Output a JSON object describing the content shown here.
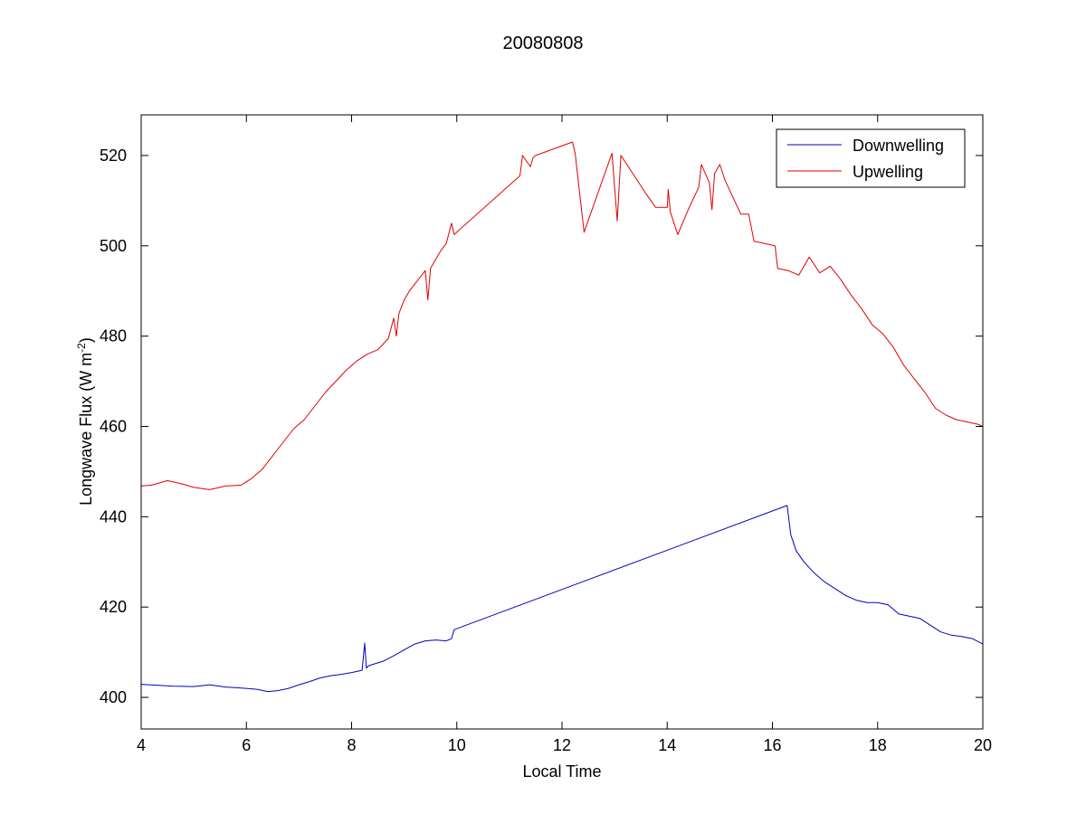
{
  "chart_data": {
    "type": "line",
    "title": "20080808",
    "xlabel": "Local Time",
    "ylabel_main": "Longwave Flux (W m",
    "ylabel_sup": "-2",
    "ylabel_close": ")",
    "xlim": [
      4,
      20
    ],
    "ylim": [
      393,
      529
    ],
    "xticks": [
      4,
      6,
      8,
      10,
      12,
      14,
      16,
      18,
      20
    ],
    "yticks": [
      400,
      420,
      440,
      460,
      480,
      500,
      520
    ],
    "grid": false,
    "legend_position": "top-right",
    "series": [
      {
        "name": "Downwelling",
        "color": "#0000c0",
        "x": [
          4.0,
          4.3,
          4.6,
          5.0,
          5.3,
          5.6,
          6.0,
          6.2,
          6.4,
          6.6,
          6.8,
          7.0,
          7.2,
          7.4,
          7.6,
          7.8,
          8.0,
          8.2,
          8.25,
          8.28,
          8.32,
          8.4,
          8.6,
          8.8,
          9.0,
          9.2,
          9.4,
          9.6,
          9.8,
          9.9,
          9.95,
          16.28,
          16.35,
          16.45,
          16.6,
          16.8,
          17.0,
          17.2,
          17.4,
          17.6,
          17.8,
          18.0,
          18.2,
          18.4,
          18.6,
          18.8,
          19.0,
          19.2,
          19.4,
          19.6,
          19.8,
          20.0
        ],
        "y": [
          402.9,
          402.7,
          402.5,
          402.4,
          402.8,
          402.3,
          402.0,
          401.8,
          401.3,
          401.5,
          402.0,
          402.8,
          403.5,
          404.3,
          404.8,
          405.1,
          405.5,
          406.0,
          412.0,
          406.5,
          407.0,
          407.3,
          408.0,
          409.2,
          410.5,
          411.8,
          412.5,
          412.7,
          412.5,
          413.0,
          415.0,
          442.5,
          436.0,
          432.5,
          430.0,
          427.5,
          425.5,
          424.0,
          422.5,
          421.5,
          421.0,
          421.0,
          420.5,
          418.5,
          418.0,
          417.5,
          416.0,
          414.5,
          413.8,
          413.5,
          413.0,
          411.8
        ]
      },
      {
        "name": "Upwelling",
        "color": "#e00000",
        "x": [
          4.0,
          4.2,
          4.5,
          4.8,
          5.0,
          5.3,
          5.6,
          5.9,
          6.1,
          6.3,
          6.5,
          6.7,
          6.9,
          7.1,
          7.3,
          7.5,
          7.7,
          7.9,
          8.1,
          8.3,
          8.5,
          8.7,
          8.8,
          8.85,
          8.9,
          9.0,
          9.1,
          9.2,
          9.3,
          9.4,
          9.45,
          9.5,
          9.6,
          9.7,
          9.8,
          9.9,
          9.95,
          11.2,
          11.25,
          11.4,
          11.45,
          11.5,
          12.2,
          12.25,
          12.42,
          12.95,
          13.05,
          13.12,
          13.6,
          13.78,
          14.0,
          14.02,
          14.06,
          14.2,
          14.4,
          14.6,
          14.65,
          14.8,
          14.85,
          14.9,
          15.0,
          15.1,
          15.2,
          15.4,
          15.55,
          15.65,
          16.05,
          16.1,
          16.3,
          16.5,
          16.7,
          16.9,
          17.1,
          17.3,
          17.5,
          17.7,
          17.9,
          18.1,
          18.3,
          18.5,
          18.7,
          18.9,
          19.1,
          19.3,
          19.5,
          19.7,
          19.9,
          20.0
        ],
        "y": [
          446.8,
          447.0,
          448.0,
          447.2,
          446.5,
          446.0,
          446.8,
          447.0,
          448.5,
          450.5,
          453.5,
          456.5,
          459.5,
          461.5,
          464.5,
          467.5,
          470.0,
          472.5,
          474.5,
          476.0,
          477.0,
          479.5,
          484.0,
          480.0,
          485.0,
          488.0,
          490.0,
          491.5,
          493.0,
          494.5,
          488.0,
          495.0,
          497.0,
          499.0,
          500.5,
          505.0,
          502.5,
          515.5,
          520.0,
          517.5,
          519.5,
          520.0,
          523.0,
          520.5,
          503.0,
          520.5,
          505.5,
          520.0,
          511.5,
          508.5,
          508.5,
          512.5,
          507.5,
          502.5,
          508.0,
          513.0,
          518.0,
          514.0,
          508.0,
          516.0,
          518.0,
          514.5,
          512.0,
          507.0,
          507.0,
          501.0,
          500.0,
          495.0,
          494.5,
          493.5,
          497.5,
          494.0,
          495.5,
          492.5,
          489.0,
          486.0,
          482.5,
          480.5,
          477.5,
          473.5,
          470.5,
          467.5,
          464.0,
          462.5,
          461.5,
          461.0,
          460.5,
          460.0
        ]
      }
    ]
  }
}
